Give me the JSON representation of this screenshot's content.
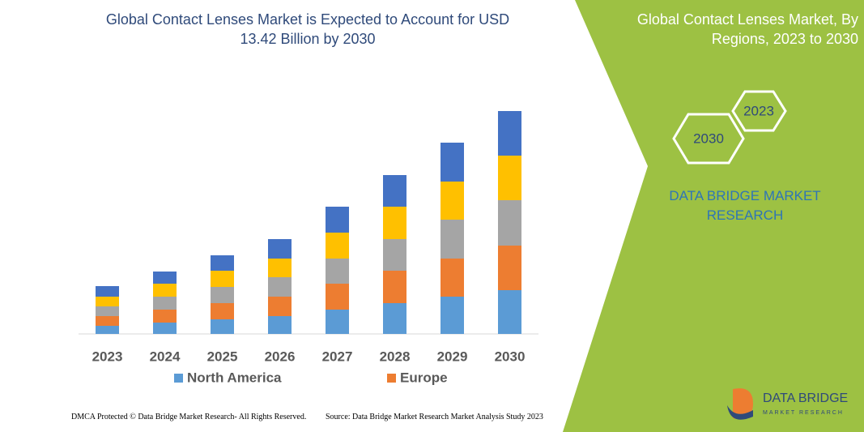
{
  "chart_data": {
    "type": "stacked_bar",
    "title": "Global Contact Lenses Market is Expected to Account for USD 13.42 Billion by 2030",
    "categories": [
      "2023",
      "2024",
      "2025",
      "2026",
      "2027",
      "2028",
      "2029",
      "2030"
    ],
    "series": [
      {
        "name": "North America",
        "color": "#5b9bd5",
        "values": [
          10,
          14,
          18,
          22,
          30,
          38,
          46,
          54
        ]
      },
      {
        "name": "Europe",
        "color": "#ed7d31",
        "values": [
          12,
          16,
          20,
          24,
          32,
          40,
          47,
          55
        ]
      },
      {
        "color": "#a5a5a5",
        "values": [
          12,
          16,
          20,
          24,
          31,
          39,
          48,
          56
        ]
      },
      {
        "color": "#ffc000",
        "values": [
          12,
          16,
          20,
          23,
          32,
          40,
          47,
          55
        ]
      },
      {
        "color": "#4472c4",
        "values": [
          13,
          15,
          19,
          24,
          32,
          39,
          48,
          55
        ]
      }
    ]
  },
  "panel": {
    "title": "Global Contact Lenses Market, By Regions, 2023 to 2030",
    "hex_front": "2030",
    "hex_back": "2023",
    "brand": "DATA BRIDGE MARKET RESEARCH"
  },
  "footer": {
    "left": "DMCA Protected © Data Bridge Market Research-  All Rights Reserved.",
    "right": "Source: Data Bridge Market Research  Market Analysis Study 2023"
  },
  "logo": {
    "name": "DATA BRIDGE",
    "tagline": "MARKET RESEARCH"
  }
}
